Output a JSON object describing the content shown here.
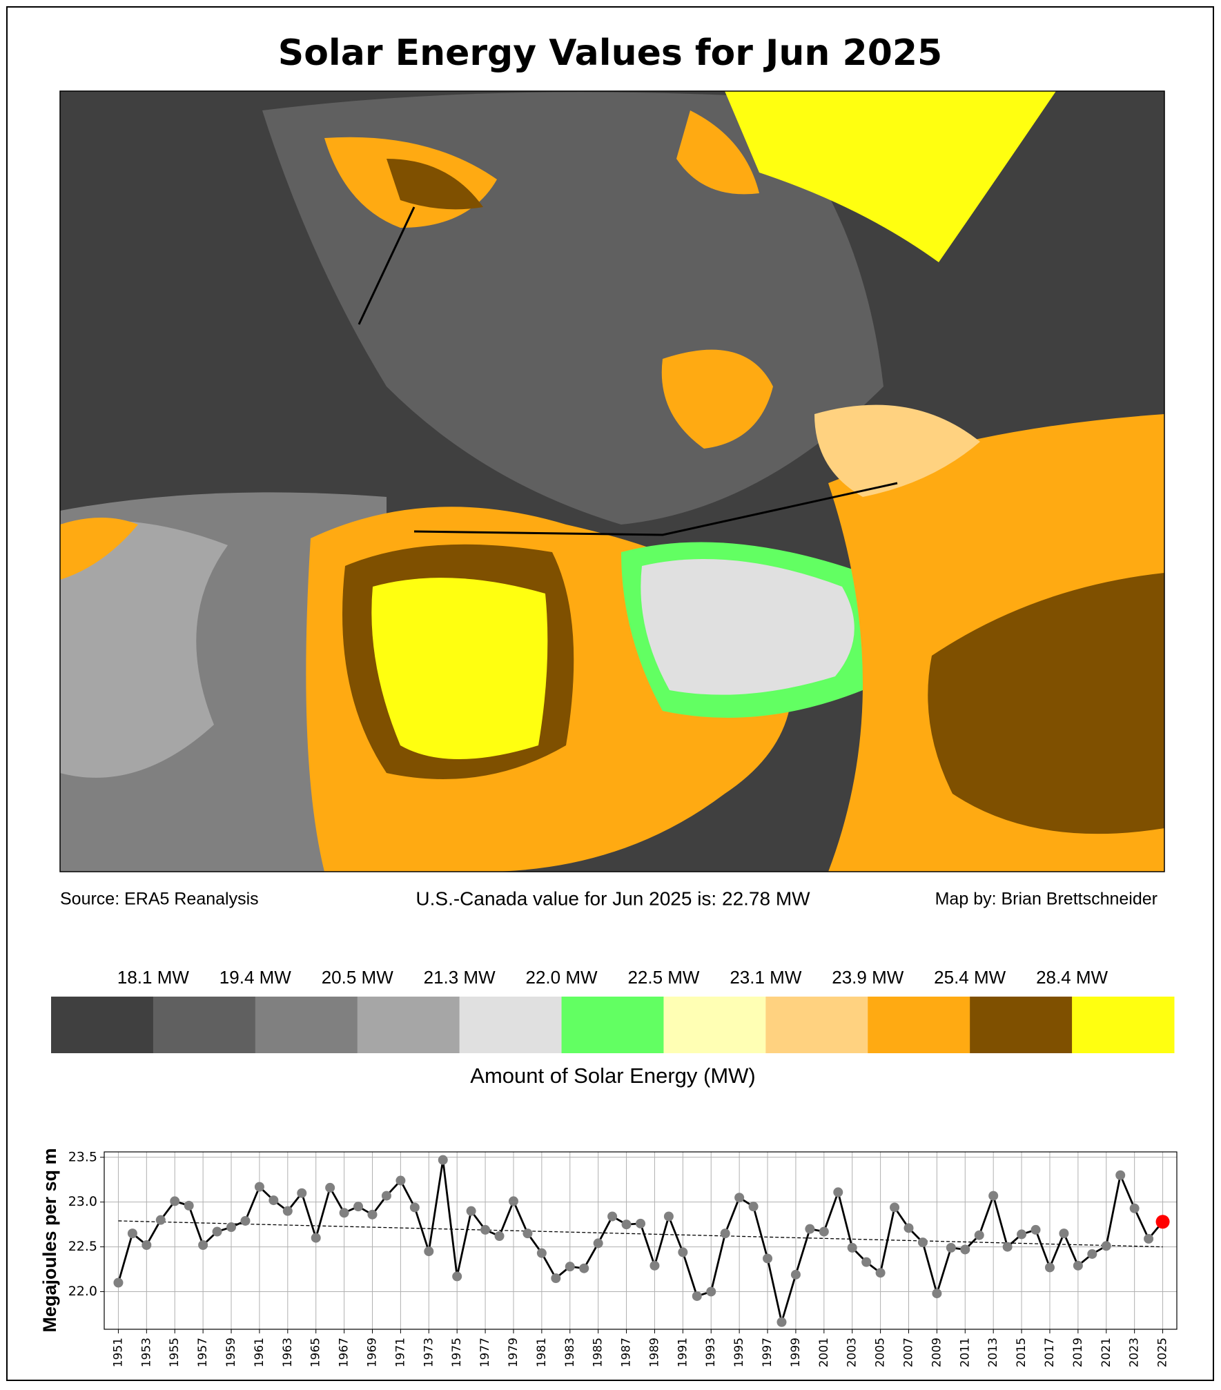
{
  "title": "Solar Energy Values for Jun 2025",
  "map": {
    "source": "Source: ERA5 Reanalysis",
    "summary": "U.S.-Canada value for Jun 2025 is: 22.78 MW",
    "credit": "Map by: Brian Brettschneider",
    "colorbar": {
      "label": "Amount of Solar Energy (MW)",
      "colors": [
        "#404040",
        "#606060",
        "#808080",
        "#a6a6a6",
        "#e0e0e0",
        "#62ff62",
        "#ffffb4",
        "#ffd280",
        "#ffaa12",
        "#7f5000",
        "#ffff10"
      ],
      "ticks": [
        {
          "value": 18.1,
          "label": "18.1 MW"
        },
        {
          "value": 19.4,
          "label": "19.4 MW"
        },
        {
          "value": 20.5,
          "label": "20.5 MW"
        },
        {
          "value": 21.3,
          "label": "21.3 MW"
        },
        {
          "value": 22.0,
          "label": "22.0 MW"
        },
        {
          "value": 22.5,
          "label": "22.5 MW"
        },
        {
          "value": 23.1,
          "label": "23.1 MW"
        },
        {
          "value": 23.9,
          "label": "23.9 MW"
        },
        {
          "value": 25.4,
          "label": "25.4 MW"
        },
        {
          "value": 28.4,
          "label": "28.4 MW"
        }
      ]
    }
  },
  "chart_data": {
    "type": "line",
    "y_label": "Megajoules per sq m",
    "x": [
      1951,
      1952,
      1953,
      1954,
      1955,
      1956,
      1957,
      1958,
      1959,
      1960,
      1961,
      1962,
      1963,
      1964,
      1965,
      1966,
      1967,
      1968,
      1969,
      1970,
      1971,
      1972,
      1973,
      1974,
      1975,
      1976,
      1977,
      1978,
      1979,
      1980,
      1981,
      1982,
      1983,
      1984,
      1985,
      1986,
      1987,
      1988,
      1989,
      1990,
      1991,
      1992,
      1993,
      1994,
      1995,
      1996,
      1997,
      1998,
      1999,
      2000,
      2001,
      2002,
      2003,
      2004,
      2005,
      2006,
      2007,
      2008,
      2009,
      2010,
      2011,
      2012,
      2013,
      2014,
      2015,
      2016,
      2017,
      2018,
      2019,
      2020,
      2021,
      2022,
      2023,
      2024,
      2025
    ],
    "series": [
      {
        "color": "#000000",
        "marker_color": "#808080",
        "last_point_color": "#ff0000",
        "values": [
          22.1,
          22.65,
          22.52,
          22.8,
          23.01,
          22.96,
          22.52,
          22.67,
          22.72,
          22.79,
          23.17,
          23.02,
          22.9,
          23.1,
          22.6,
          23.16,
          22.88,
          22.95,
          22.86,
          23.07,
          23.24,
          22.94,
          22.45,
          23.47,
          22.17,
          22.9,
          22.69,
          22.62,
          23.01,
          22.65,
          22.43,
          22.15,
          22.28,
          22.26,
          22.54,
          22.84,
          22.75,
          22.76,
          22.29,
          22.84,
          22.44,
          21.95,
          22.0,
          22.65,
          23.05,
          22.95,
          22.37,
          21.66,
          22.19,
          22.7,
          22.67,
          23.11,
          22.49,
          22.33,
          22.21,
          22.94,
          22.71,
          22.55,
          21.98,
          22.49,
          22.47,
          22.63,
          23.07,
          22.5,
          22.64,
          22.69,
          22.27,
          22.65,
          22.29,
          22.42,
          22.51,
          23.3,
          22.93,
          22.59,
          22.78
        ]
      }
    ],
    "trend": {
      "x": [
        1951,
        2025
      ],
      "values": [
        22.79,
        22.5
      ],
      "color": "#000000"
    },
    "xlim": [
      1950,
      2026
    ],
    "ylim": [
      21.58,
      23.56
    ],
    "xticks": [
      1951,
      1953,
      1955,
      1957,
      1959,
      1961,
      1963,
      1965,
      1967,
      1969,
      1971,
      1973,
      1975,
      1977,
      1979,
      1981,
      1983,
      1985,
      1987,
      1989,
      1991,
      1993,
      1995,
      1997,
      1999,
      2001,
      2003,
      2005,
      2007,
      2009,
      2011,
      2013,
      2015,
      2017,
      2019,
      2021,
      2023,
      2025
    ],
    "yticks": [
      {
        "value": 22.0,
        "label": "22.0"
      },
      22.5,
      {
        "value": 23.0,
        "label": "23.0"
      },
      23.5
    ],
    "grid": true
  }
}
